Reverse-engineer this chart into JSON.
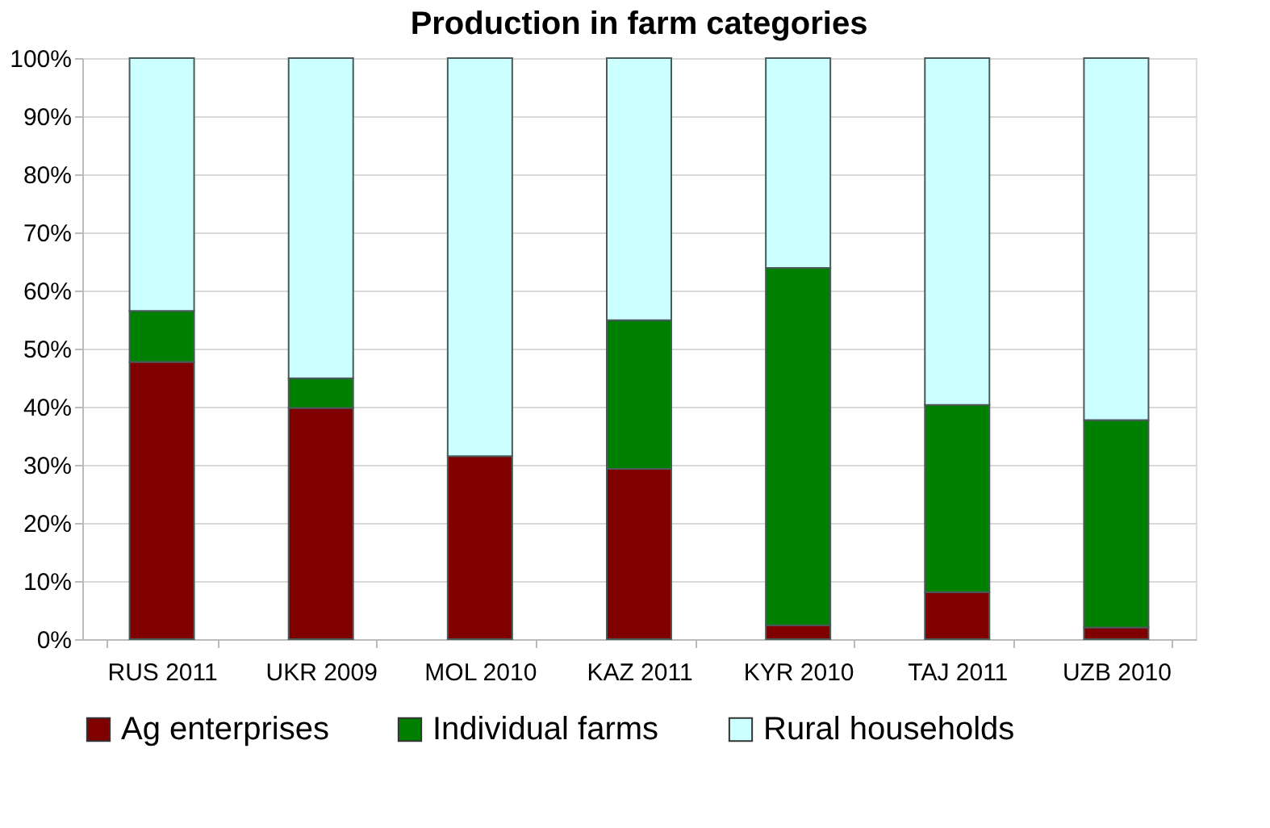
{
  "chart_data": {
    "type": "bar",
    "title": "Production in farm categories",
    "stacked": true,
    "categories": [
      "RUS 2011",
      "UKR 2009",
      "MOL 2010",
      "KAZ 2011",
      "KYR 2010",
      "TAJ 2011",
      "UZB 2010"
    ],
    "series": [
      {
        "name": "Ag enterprises",
        "color": "#800000",
        "values": [
          47.7,
          39.8,
          31.5,
          29.3,
          2.4,
          8.1,
          2.0
        ]
      },
      {
        "name": "Individual farms",
        "color": "#008000",
        "values": [
          8.8,
          5.1,
          null,
          25.6,
          61.5,
          32.2,
          35.7
        ]
      },
      {
        "name": "Rural households",
        "color": "#ccffff",
        "values": [
          43.5,
          55.1,
          68.5,
          45.1,
          36.1,
          59.7,
          62.3
        ]
      }
    ],
    "ylim": [
      0,
      100
    ],
    "yticks": [
      {
        "value": 0,
        "label": "0%"
      },
      {
        "value": 10,
        "label": "10%"
      },
      {
        "value": 20,
        "label": "20%"
      },
      {
        "value": 30,
        "label": "30%"
      },
      {
        "value": 40,
        "label": "40%"
      },
      {
        "value": 50,
        "label": "50%"
      },
      {
        "value": 60,
        "label": "60%"
      },
      {
        "value": 70,
        "label": "70%"
      },
      {
        "value": 80,
        "label": "80%"
      },
      {
        "value": 90,
        "label": "90%"
      },
      {
        "value": 100,
        "label": "100%"
      }
    ],
    "grid": "y",
    "legend": "bottom"
  }
}
